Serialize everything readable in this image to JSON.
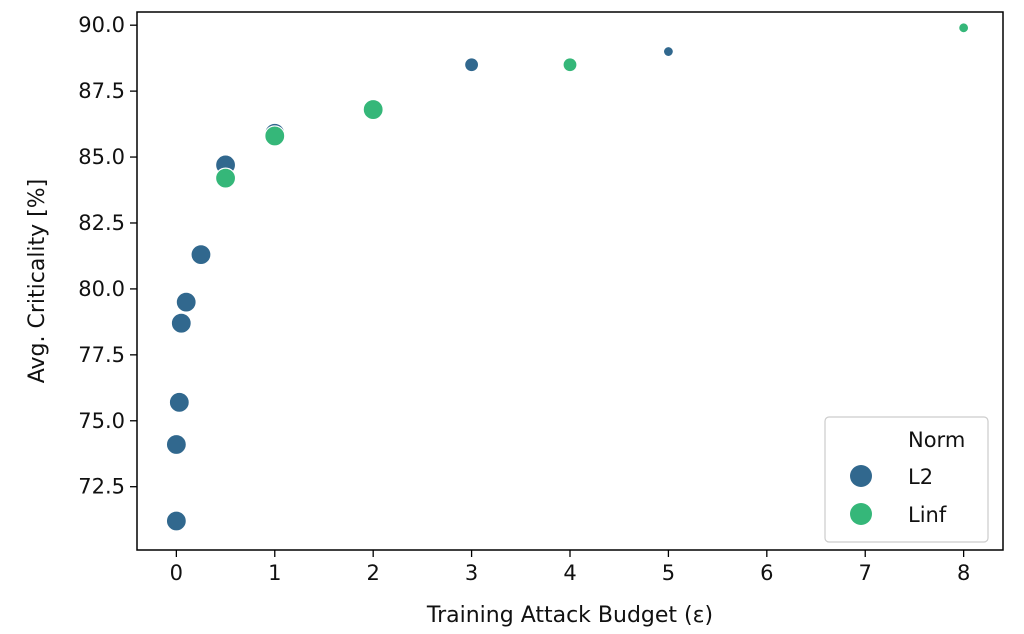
{
  "chart_data": {
    "type": "scatter",
    "xlabel": "Training Attack Budget (ε)",
    "ylabel": "Avg. Criticality [%]",
    "x_ticks": [
      "0",
      "1",
      "2",
      "3",
      "4",
      "5",
      "6",
      "7",
      "8"
    ],
    "y_ticks": [
      "72.5",
      "75.0",
      "77.5",
      "80.0",
      "82.5",
      "85.0",
      "87.5",
      "90.0"
    ],
    "xlim": [
      -0.4,
      8.4
    ],
    "ylim": [
      70.1,
      90.5
    ],
    "grid": false,
    "legend": {
      "title": "Norm",
      "position": "bottom-right"
    },
    "series": [
      {
        "name": "L2",
        "color": "#31688e",
        "points": [
          {
            "x": 0.0,
            "y": 71.2
          },
          {
            "x": 0.0,
            "y": 74.1
          },
          {
            "x": 0.03,
            "y": 75.7
          },
          {
            "x": 0.05,
            "y": 78.7
          },
          {
            "x": 0.1,
            "y": 79.5
          },
          {
            "x": 0.25,
            "y": 81.3
          },
          {
            "x": 0.5,
            "y": 84.7
          },
          {
            "x": 1.0,
            "y": 85.9
          },
          {
            "x": 3.0,
            "y": 88.5
          },
          {
            "x": 5.0,
            "y": 89.0
          }
        ]
      },
      {
        "name": "Linf",
        "color": "#35b779",
        "points": [
          {
            "x": 0.5,
            "y": 84.2
          },
          {
            "x": 1.0,
            "y": 85.8
          },
          {
            "x": 2.0,
            "y": 86.8
          },
          {
            "x": 4.0,
            "y": 88.5
          },
          {
            "x": 8.0,
            "y": 89.9
          }
        ]
      }
    ]
  }
}
